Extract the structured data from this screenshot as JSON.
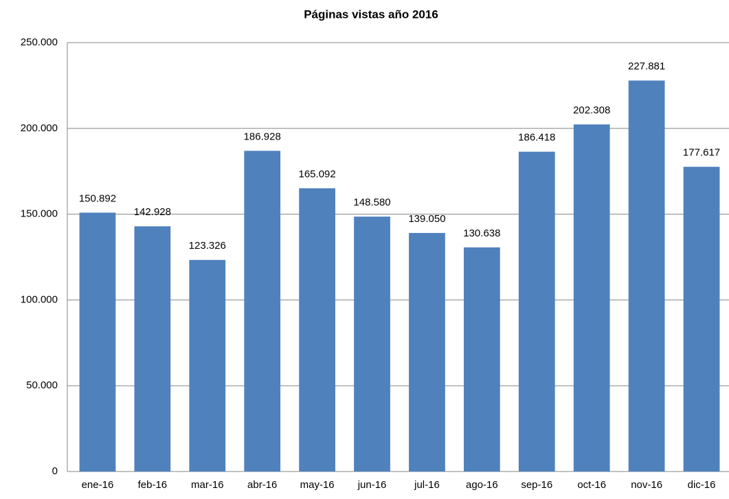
{
  "chart_data": {
    "type": "bar",
    "title": "Páginas vistas año 2016",
    "categories": [
      "ene-16",
      "feb-16",
      "mar-16",
      "abr-16",
      "may-16",
      "jun-16",
      "jul-16",
      "ago-16",
      "sep-16",
      "oct-16",
      "nov-16",
      "dic-16"
    ],
    "values": [
      150892,
      142928,
      123326,
      186928,
      165092,
      148580,
      139050,
      130638,
      186418,
      202308,
      227881,
      177617
    ],
    "value_labels": [
      "150.892",
      "142.928",
      "123.326",
      "186.928",
      "165.092",
      "148.580",
      "139.050",
      "130.638",
      "186.418",
      "202.308",
      "227.881",
      "177.617"
    ],
    "color": "#4f81bd",
    "ylim": [
      0,
      250000
    ],
    "yticks": [
      0,
      {
        "value": 50000,
        "label": "50.000"
      },
      {
        "value": 100000,
        "label": "100.000"
      },
      {
        "value": 150000,
        "label": "150.000"
      },
      {
        "value": 200000,
        "label": "200.000"
      },
      {
        "value": 250000,
        "label": "250.000"
      }
    ],
    "grid": true
  }
}
